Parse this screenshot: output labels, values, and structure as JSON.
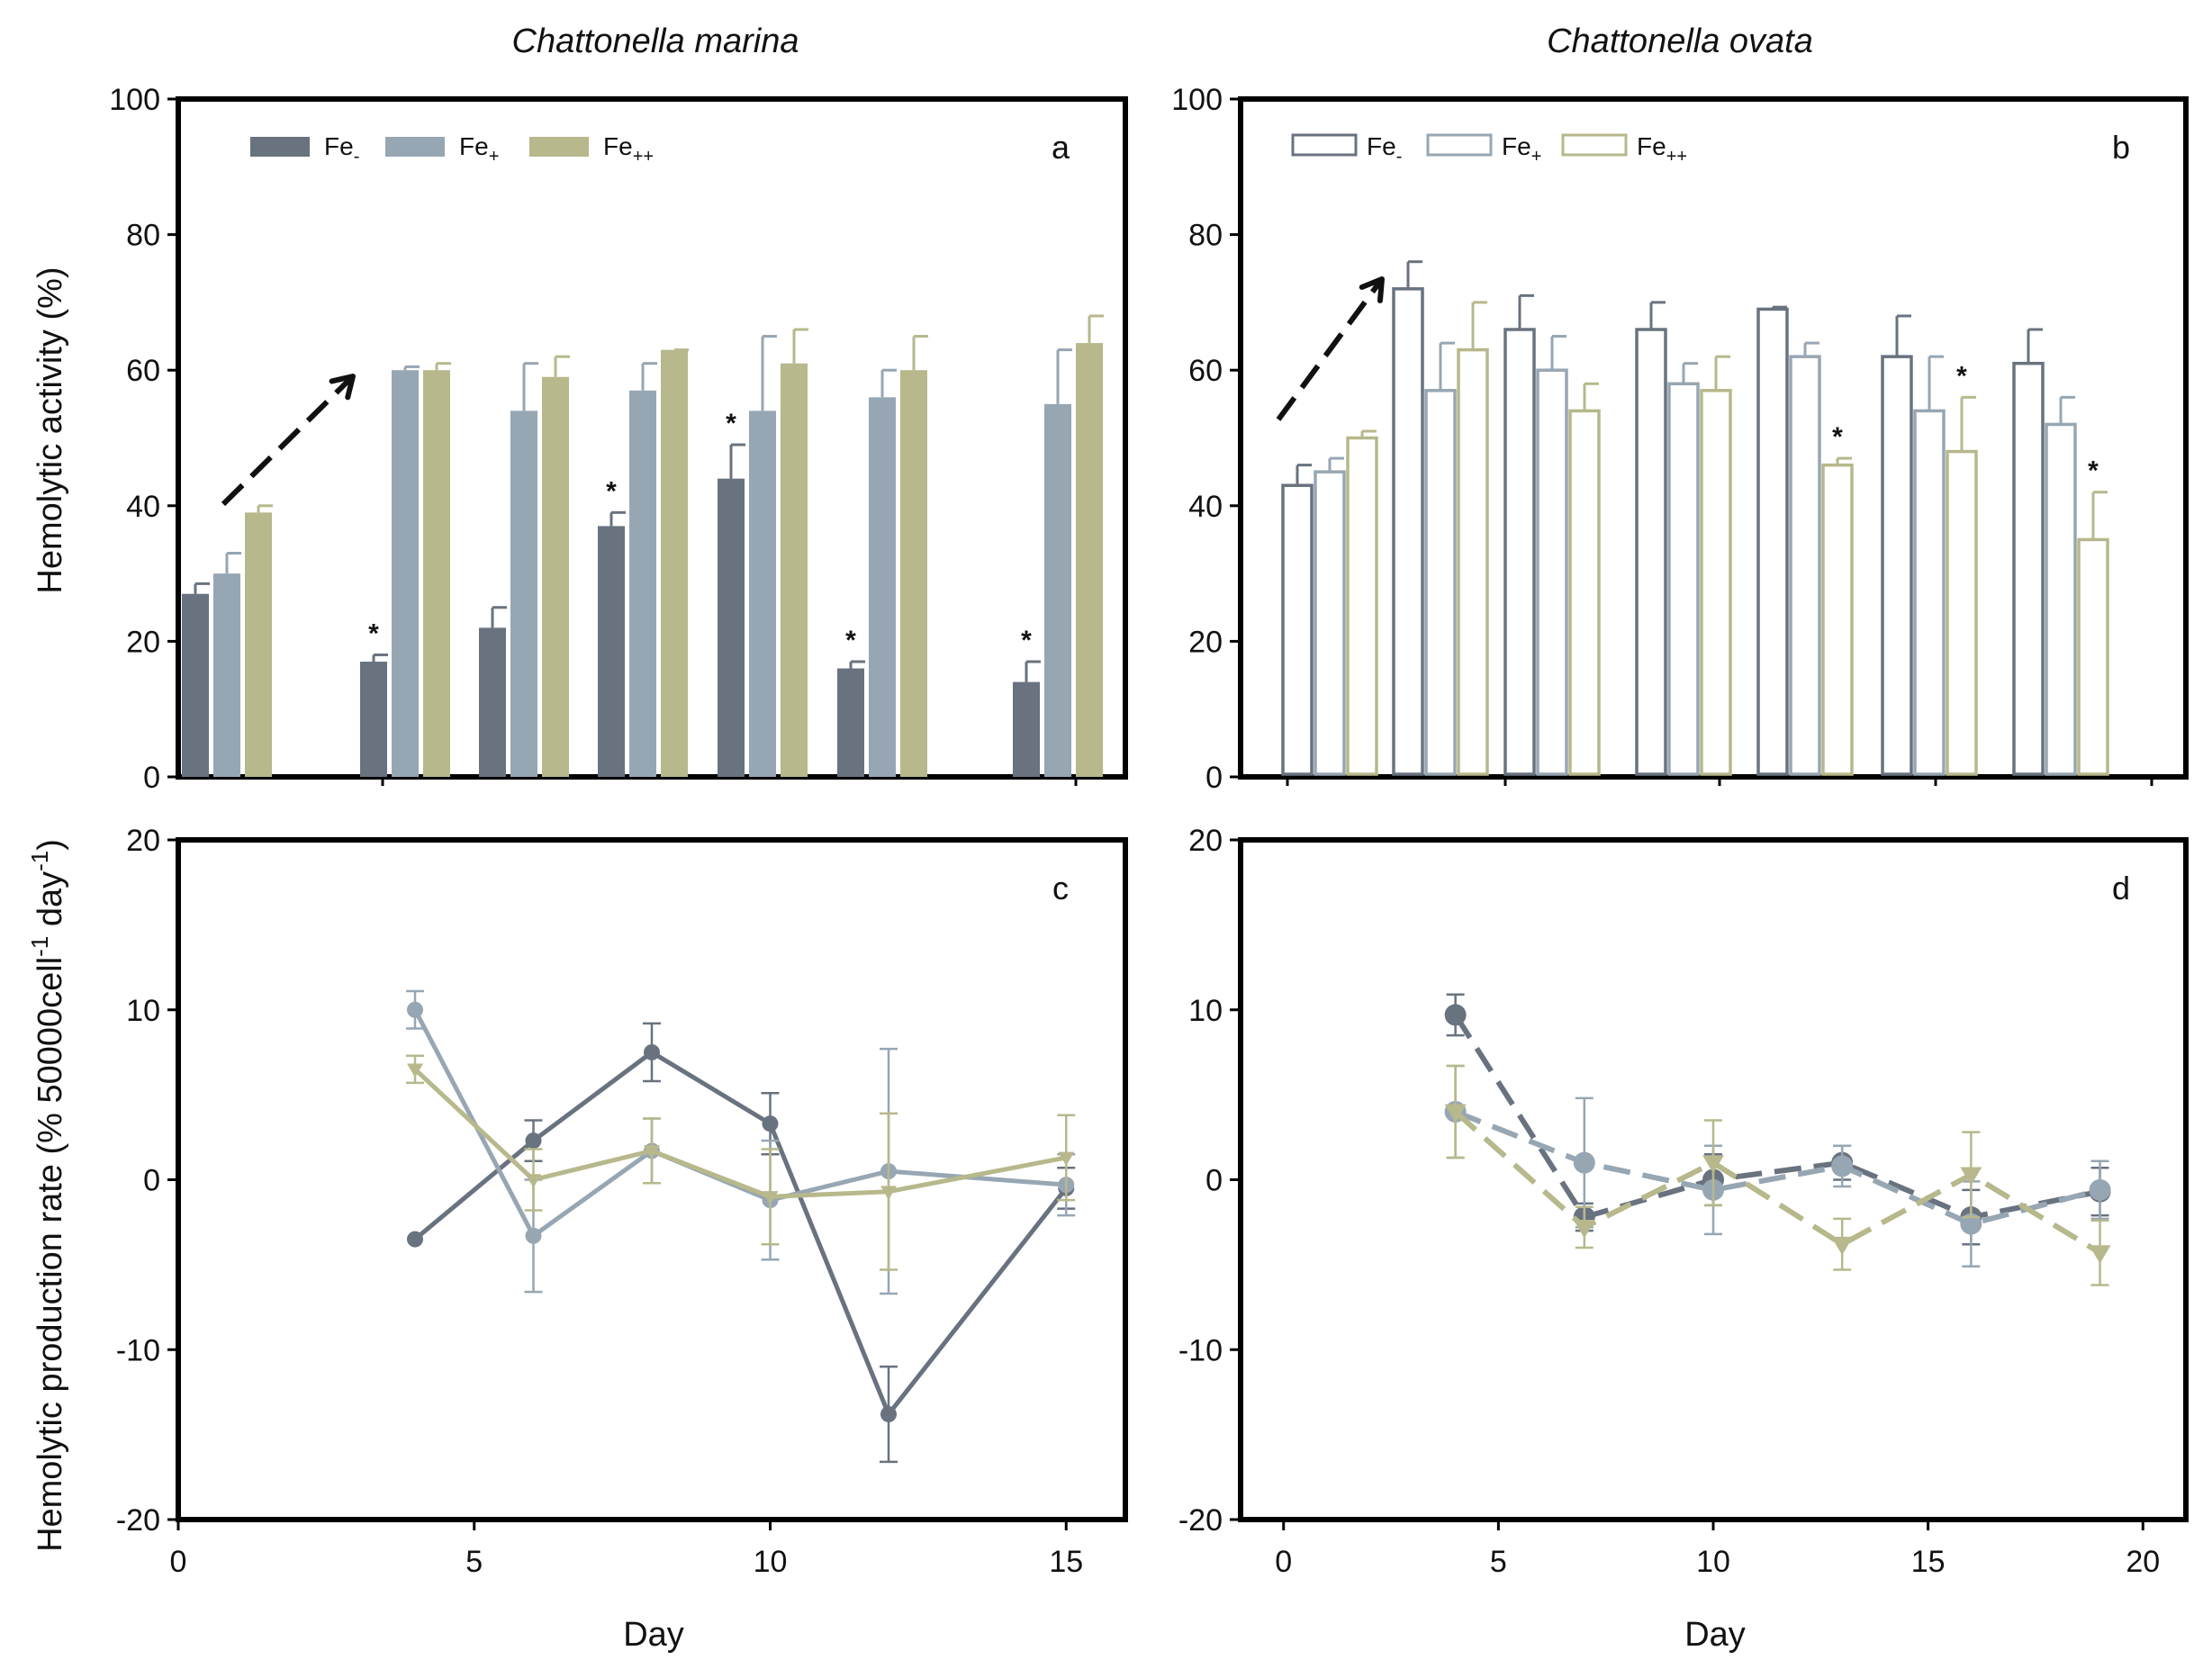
{
  "chart_data": [
    {
      "panel": "a",
      "title": "Chattonella marina",
      "type": "bar",
      "filled": true,
      "x": [
        0,
        4,
        6,
        8,
        10,
        12,
        15
      ],
      "series": [
        {
          "name": "Fe-",
          "base": "Fe",
          "sub": "-",
          "color": "#69727f",
          "values": [
            27,
            17,
            22,
            37,
            44,
            16,
            14
          ],
          "errors": [
            1.5,
            1,
            3,
            2,
            5,
            1,
            3
          ],
          "significant": [
            false,
            true,
            false,
            true,
            true,
            true,
            true
          ]
        },
        {
          "name": "Fe+",
          "base": "Fe",
          "sub": "+",
          "color": "#97a6b3",
          "values": [
            30,
            60,
            54,
            57,
            54,
            56,
            55
          ],
          "errors": [
            3,
            0.5,
            7,
            4,
            11,
            4,
            8
          ],
          "significant": [
            false,
            false,
            false,
            false,
            false,
            false,
            false
          ]
        },
        {
          "name": "Fe++",
          "base": "Fe",
          "sub": "++",
          "color": "#b7b88b",
          "values": [
            39,
            60,
            59,
            63,
            61,
            60,
            64
          ],
          "errors": [
            1,
            1,
            3,
            0,
            5,
            5,
            4
          ],
          "significant": [
            false,
            false,
            false,
            false,
            false,
            false,
            false
          ]
        }
      ],
      "ylim": [
        0,
        100
      ],
      "yticks": [
        0,
        20,
        40,
        60,
        80,
        100
      ],
      "ylabel": "Hemolytic activity (%)",
      "annotation": "dashed arrow"
    },
    {
      "panel": "b",
      "title": "Chattonella ovata",
      "type": "bar",
      "filled": false,
      "x": [
        0,
        4,
        7,
        10,
        13,
        16,
        19
      ],
      "series": [
        {
          "name": "Fe-",
          "base": "Fe",
          "sub": "-",
          "color": "#69727f",
          "values": [
            43,
            72,
            66,
            66,
            69,
            62,
            61
          ],
          "errors": [
            3,
            4,
            5,
            4,
            0.3,
            6,
            5
          ],
          "significant": [
            false,
            false,
            false,
            false,
            false,
            false,
            false
          ]
        },
        {
          "name": "Fe+",
          "base": "Fe",
          "sub": "+",
          "color": "#97a6b3",
          "values": [
            45,
            57,
            60,
            58,
            62,
            54,
            52
          ],
          "errors": [
            2,
            7,
            5,
            3,
            2,
            8,
            4
          ],
          "significant": [
            false,
            false,
            false,
            false,
            false,
            false,
            false
          ]
        },
        {
          "name": "Fe++",
          "base": "Fe",
          "sub": "++",
          "color": "#b7b88b",
          "values": [
            50,
            63,
            54,
            57,
            46,
            48,
            35
          ],
          "errors": [
            1,
            7,
            4,
            5,
            1,
            8,
            7
          ],
          "significant": [
            false,
            false,
            false,
            false,
            true,
            true,
            true
          ]
        }
      ],
      "ylim": [
        0,
        100
      ],
      "yticks": [
        0,
        20,
        40,
        60,
        80,
        100
      ],
      "annotation": "dashed arrow"
    },
    {
      "panel": "c",
      "type": "line",
      "line_style": "solid",
      "x": [
        4,
        6,
        8,
        10,
        12,
        15
      ],
      "series": [
        {
          "name": "Fe-",
          "color": "#69727f",
          "marker": "circle",
          "values": [
            -3.5,
            2.3,
            7.5,
            3.3,
            -13.8,
            -0.5
          ],
          "errors": [
            0,
            1.2,
            1.7,
            1.8,
            2.8,
            1.2
          ]
        },
        {
          "name": "Fe+",
          "color": "#97a6b3",
          "marker": "circle",
          "values": [
            10,
            -3.3,
            1.7,
            -1.2,
            0.5,
            -0.3
          ],
          "errors": [
            1.1,
            3.3,
            1.9,
            3.5,
            7.2,
            1.8
          ]
        },
        {
          "name": "Fe++",
          "color": "#b7b88b",
          "marker": "triangle",
          "values": [
            6.5,
            0,
            1.7,
            -1,
            -0.7,
            1.3
          ],
          "errors": [
            0.8,
            1.8,
            1.9,
            2.8,
            4.6,
            2.5
          ]
        }
      ],
      "xlim": [
        0,
        16
      ],
      "xticks": [
        0,
        5,
        10,
        15
      ],
      "ylim": [
        -20,
        20
      ],
      "yticks": [
        -20,
        -10,
        0,
        10,
        20
      ],
      "xlabel": "Day",
      "ylabel_main": "Hemolytic production rate (% 50000cell",
      "ylabel_sup1": "-1",
      "ylabel_mid": " day",
      "ylabel_sup2": "-1",
      "ylabel_end": ")"
    },
    {
      "panel": "d",
      "type": "line",
      "line_style": "dashed",
      "x": [
        4,
        7,
        10,
        13,
        16,
        19
      ],
      "series": [
        {
          "name": "Fe-",
          "color": "#69727f",
          "marker": "circle",
          "values": [
            9.7,
            -2.2,
            0,
            1,
            -2.2,
            -0.7
          ],
          "errors": [
            1.2,
            0.8,
            1.5,
            1,
            1.6,
            1.4
          ]
        },
        {
          "name": "Fe+",
          "color": "#97a6b3",
          "marker": "circle",
          "values": [
            4,
            1,
            -0.6,
            0.8,
            -2.6,
            -0.6
          ],
          "errors": [
            2.7,
            3.8,
            2.6,
            1.2,
            2.5,
            1.7
          ]
        },
        {
          "name": "Fe++",
          "color": "#b7b88b",
          "marker": "triangle",
          "values": [
            4,
            -2.8,
            1,
            -3.8,
            0.3,
            -4.3
          ],
          "errors": [
            2.7,
            1.2,
            2.5,
            1.5,
            2.5,
            1.9
          ]
        }
      ],
      "xlim": [
        -1,
        21
      ],
      "xticks": [
        0,
        5,
        10,
        15,
        20
      ],
      "ylim": [
        -20,
        20
      ],
      "yticks": [
        -20,
        -10,
        0,
        10,
        20
      ],
      "xlabel": "Day"
    }
  ],
  "significance_mark": "*"
}
